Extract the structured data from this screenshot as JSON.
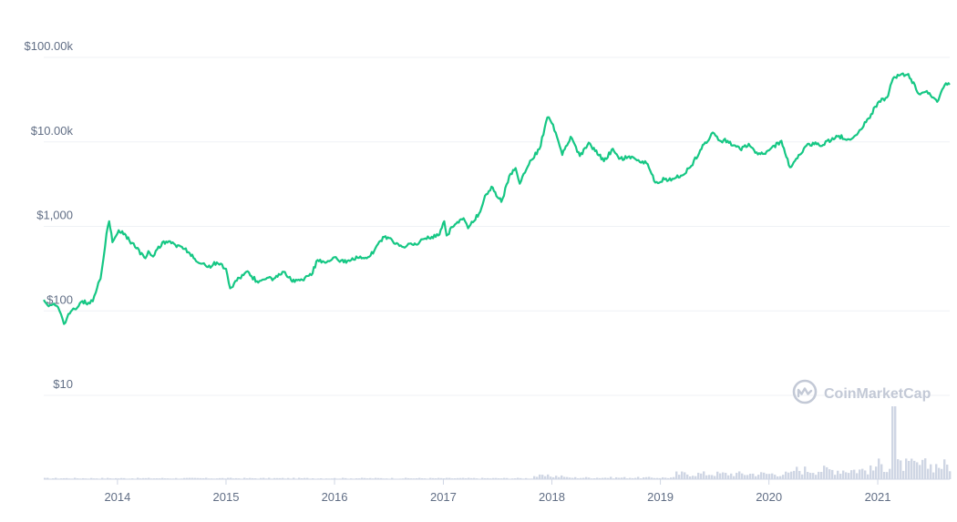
{
  "chart_data": {
    "type": "line",
    "title": "",
    "xlabel": "",
    "ylabel": "",
    "y_scale": "log",
    "y_ticks": [
      {
        "value": 100000,
        "label": "$100.00k"
      },
      {
        "value": 10000,
        "label": "$10.00k"
      },
      {
        "value": 1000,
        "label": "$1,000"
      },
      {
        "value": 100,
        "label": "$100"
      },
      {
        "value": 10,
        "label": "$10"
      }
    ],
    "x_ticks": [
      {
        "value": "2014-01-01",
        "label": "2014"
      },
      {
        "value": "2015-01-01",
        "label": "2015"
      },
      {
        "value": "2016-01-01",
        "label": "2016"
      },
      {
        "value": "2017-01-01",
        "label": "2017"
      },
      {
        "value": "2018-01-01",
        "label": "2018"
      },
      {
        "value": "2019-01-01",
        "label": "2019"
      },
      {
        "value": "2020-01-01",
        "label": "2020"
      },
      {
        "value": "2021-01-01",
        "label": "2021"
      }
    ],
    "xlim": [
      "2013-04-28",
      "2021-08-31"
    ],
    "ylim": [
      5,
      100000
    ],
    "grid": true,
    "line_color": "#16c784",
    "volume_color": "#cfd6e4",
    "series": [
      {
        "values": [
          [
            "2013-04-28",
            135
          ],
          [
            "2013-05-10",
            118
          ],
          [
            "2013-06-01",
            122
          ],
          [
            "2013-06-20",
            100
          ],
          [
            "2013-07-05",
            70
          ],
          [
            "2013-07-20",
            92
          ],
          [
            "2013-08-10",
            105
          ],
          [
            "2013-09-01",
            128
          ],
          [
            "2013-09-25",
            125
          ],
          [
            "2013-10-10",
            130
          ],
          [
            "2013-10-25",
            190
          ],
          [
            "2013-11-05",
            240
          ],
          [
            "2013-11-15",
            420
          ],
          [
            "2013-11-25",
            820
          ],
          [
            "2013-12-04",
            1150
          ],
          [
            "2013-12-15",
            650
          ],
          [
            "2014-01-05",
            900
          ],
          [
            "2014-01-25",
            820
          ],
          [
            "2014-02-10",
            680
          ],
          [
            "2014-03-01",
            570
          ],
          [
            "2014-04-05",
            420
          ],
          [
            "2014-04-15",
            510
          ],
          [
            "2014-05-01",
            440
          ],
          [
            "2014-06-01",
            650
          ],
          [
            "2014-07-01",
            630
          ],
          [
            "2014-08-01",
            580
          ],
          [
            "2014-09-01",
            480
          ],
          [
            "2014-10-01",
            370
          ],
          [
            "2014-11-01",
            330
          ],
          [
            "2014-12-01",
            375
          ],
          [
            "2015-01-01",
            315
          ],
          [
            "2015-01-15",
            185
          ],
          [
            "2015-02-15",
            245
          ],
          [
            "2015-03-10",
            290
          ],
          [
            "2015-04-15",
            225
          ],
          [
            "2015-05-15",
            238
          ],
          [
            "2015-06-15",
            245
          ],
          [
            "2015-07-10",
            290
          ],
          [
            "2015-08-20",
            220
          ],
          [
            "2015-09-15",
            232
          ],
          [
            "2015-10-15",
            265
          ],
          [
            "2015-11-05",
            400
          ],
          [
            "2015-12-01",
            370
          ],
          [
            "2016-01-01",
            432
          ],
          [
            "2016-02-01",
            375
          ],
          [
            "2016-03-01",
            420
          ],
          [
            "2016-04-01",
            418
          ],
          [
            "2016-05-01",
            450
          ],
          [
            "2016-06-16",
            750
          ],
          [
            "2016-07-15",
            665
          ],
          [
            "2016-08-15",
            575
          ],
          [
            "2016-10-01",
            610
          ],
          [
            "2016-11-01",
            720
          ],
          [
            "2016-12-15",
            780
          ],
          [
            "2017-01-04",
            1150
          ],
          [
            "2017-01-12",
            780
          ],
          [
            "2017-02-01",
            980
          ],
          [
            "2017-03-10",
            1250
          ],
          [
            "2017-03-25",
            950
          ],
          [
            "2017-05-01",
            1420
          ],
          [
            "2017-05-25",
            2400
          ],
          [
            "2017-06-12",
            2950
          ],
          [
            "2017-07-15",
            1950
          ],
          [
            "2017-08-15",
            4200
          ],
          [
            "2017-09-01",
            4900
          ],
          [
            "2017-09-15",
            3200
          ],
          [
            "2017-10-20",
            6000
          ],
          [
            "2017-11-20",
            8200
          ],
          [
            "2017-12-17",
            19500
          ],
          [
            "2018-01-05",
            16000
          ],
          [
            "2018-02-05",
            7000
          ],
          [
            "2018-03-05",
            11500
          ],
          [
            "2018-04-05",
            6800
          ],
          [
            "2018-05-05",
            9800
          ],
          [
            "2018-06-25",
            5900
          ],
          [
            "2018-07-25",
            8300
          ],
          [
            "2018-08-15",
            6300
          ],
          [
            "2018-10-01",
            6600
          ],
          [
            "2018-11-15",
            5600
          ],
          [
            "2018-12-15",
            3300
          ],
          [
            "2019-01-15",
            3600
          ],
          [
            "2019-02-15",
            3650
          ],
          [
            "2019-03-15",
            4000
          ],
          [
            "2019-04-15",
            5200
          ],
          [
            "2019-05-15",
            8000
          ],
          [
            "2019-06-26",
            12900
          ],
          [
            "2019-07-15",
            10500
          ],
          [
            "2019-08-15",
            10300
          ],
          [
            "2019-09-26",
            8200
          ],
          [
            "2019-10-25",
            9500
          ],
          [
            "2019-11-25",
            7100
          ],
          [
            "2019-12-20",
            7200
          ],
          [
            "2020-02-12",
            10300
          ],
          [
            "2020-03-12",
            5000
          ],
          [
            "2020-04-10",
            7000
          ],
          [
            "2020-05-15",
            9500
          ],
          [
            "2020-07-01",
            9200
          ],
          [
            "2020-08-15",
            11800
          ],
          [
            "2020-10-01",
            10600
          ],
          [
            "2020-11-01",
            13800
          ],
          [
            "2020-12-01",
            19000
          ],
          [
            "2021-01-01",
            29000
          ],
          [
            "2021-02-01",
            33500
          ],
          [
            "2021-02-21",
            56000
          ],
          [
            "2021-03-13",
            61000
          ],
          [
            "2021-04-14",
            63500
          ],
          [
            "2021-05-19",
            37000
          ],
          [
            "2021-06-15",
            40000
          ],
          [
            "2021-07-20",
            29800
          ],
          [
            "2021-08-14",
            47000
          ],
          [
            "2021-08-31",
            47500
          ]
        ]
      }
    ]
  },
  "watermark": {
    "text": "CoinMarketCap",
    "icon": "coinmarketcap-logo-icon"
  }
}
